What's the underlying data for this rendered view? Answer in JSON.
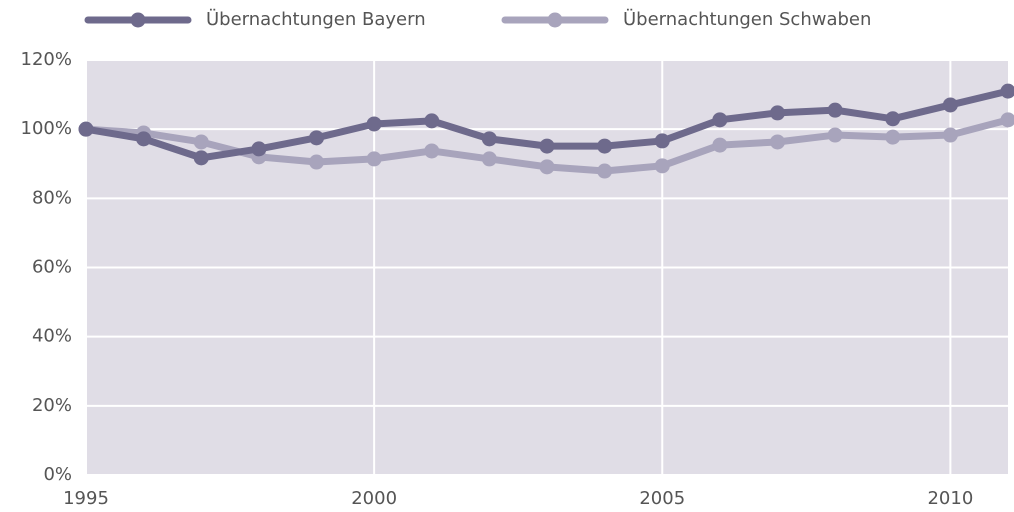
{
  "chart_data": {
    "type": "line",
    "x": [
      1995,
      1996,
      1997,
      1998,
      1999,
      2000,
      2001,
      2002,
      2003,
      2004,
      2005,
      2006,
      2007,
      2008,
      2009,
      2010,
      2011
    ],
    "series": [
      {
        "name": "Übernachtungen Bayern",
        "color": "#6e6a8c",
        "values": [
          100,
          97.2,
          91.7,
          94.3,
          97.5,
          101.5,
          102.4,
          97.2,
          95.1,
          95.1,
          96.6,
          102.7,
          104.7,
          105.5,
          103,
          107,
          111
        ]
      },
      {
        "name": "Übernachtungen Schwaben",
        "color": "#a8a4bc",
        "values": [
          100,
          98.9,
          96.3,
          92,
          90.5,
          91.4,
          93.7,
          91.4,
          89.1,
          87.9,
          89.4,
          95.4,
          96.3,
          98.3,
          97.7,
          98.3,
          102.7
        ]
      }
    ],
    "xlim": [
      1995,
      2011
    ],
    "xticks": [
      1995,
      2000,
      2005,
      2010
    ],
    "ylim": [
      0,
      120
    ],
    "yticks": [
      {
        "value": 0,
        "label": "0%"
      },
      {
        "value": 20,
        "label": "20%"
      },
      {
        "value": 40,
        "label": "40%"
      },
      {
        "value": 60,
        "label": "60%"
      },
      {
        "value": 80,
        "label": "80%"
      },
      {
        "value": 100,
        "label": "100%"
      },
      {
        "value": 120,
        "label": "120%"
      }
    ],
    "grid": true,
    "legend": "top"
  }
}
